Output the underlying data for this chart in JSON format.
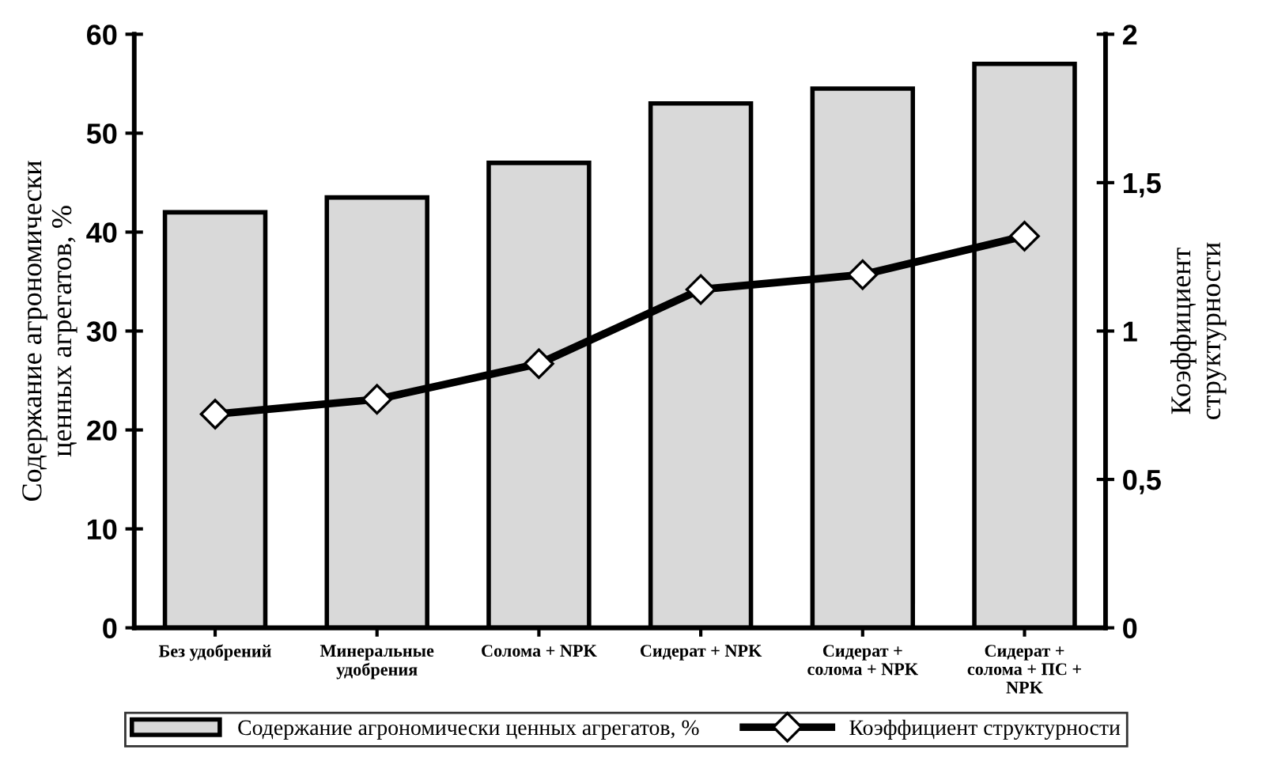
{
  "chart_data": {
    "type": "bar",
    "ylabel": "Содержание агрономически\nценных агрегатов, %",
    "y2label": "Коэффициент\nструктурности",
    "categories": [
      "Без удобрений",
      "Минеральные\nудобрения",
      "Солома + NPK",
      "Сидерат + NPK",
      "Сидерат +\nсолома + NPK",
      "Сидерат +\nсолома + ПС +\nNPK"
    ],
    "series": [
      {
        "name": "Содержание агрономически ценных агрегатов, %",
        "color": "#d9d9d9",
        "values": [
          42,
          43.5,
          47,
          53,
          54.5,
          57
        ]
      },
      {
        "name": "Коэффициент структурности",
        "type": "line",
        "axis": "y2",
        "color": "#000000",
        "marker": "diamond",
        "values": [
          0.72,
          0.77,
          0.89,
          1.14,
          1.19,
          1.32
        ]
      }
    ],
    "ylim": [
      0,
      60
    ],
    "yticks": [
      0,
      10,
      20,
      30,
      40,
      50,
      60
    ],
    "y2lim": [
      0,
      2
    ],
    "y2ticks": [
      0,
      {
        "value": 0.5,
        "label": "0,5"
      },
      1,
      {
        "value": 1.5,
        "label": "1,5"
      },
      2
    ],
    "grid": false,
    "legend": "bottom"
  }
}
